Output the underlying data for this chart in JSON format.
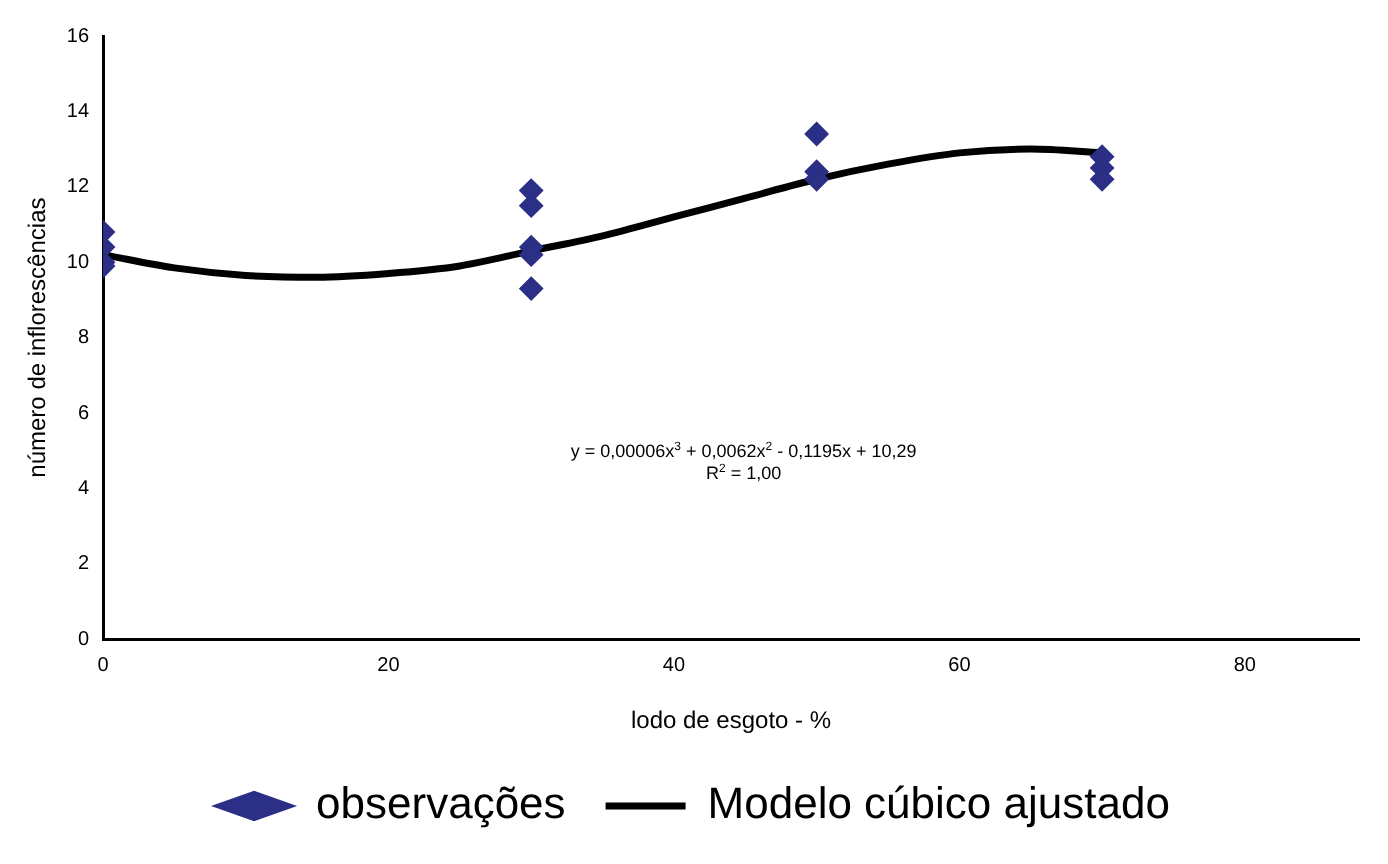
{
  "chart_data": {
    "type": "scatter",
    "xlabel": "lodo de esgoto - %",
    "ylabel": "número de inflorescências",
    "xlim": [
      0,
      88
    ],
    "xticks": [
      0,
      20,
      40,
      60,
      80
    ],
    "ylim": [
      0,
      16
    ],
    "yticks": [
      0,
      2,
      4,
      6,
      8,
      10,
      12,
      14,
      16
    ],
    "grid": false,
    "legend": "bottom",
    "marker": "diamond",
    "annotations": [
      "y = 0,00006x$^{3}$ + 0,0062x$^{2}$ - 0,1195x + 10,29",
      "R$^{2}$ = 1,00"
    ],
    "series": [
      {
        "name": "observações",
        "type": "scatter",
        "color": "#2b2f86",
        "x": [
          0,
          0,
          0,
          0,
          30,
          30,
          30,
          30,
          30,
          50,
          50,
          50,
          70,
          70,
          70
        ],
        "values": [
          10.8,
          10.4,
          10.0,
          9.9,
          11.9,
          11.5,
          10.4,
          10.2,
          9.3,
          13.4,
          12.4,
          12.2,
          12.8,
          12.5,
          12.2
        ]
      },
      {
        "name": "Modelo cúbico ajustado",
        "type": "line",
        "color": "#000000",
        "line_style": "solid",
        "marker": "none",
        "x": [
          0,
          5,
          10,
          15,
          20,
          25,
          30,
          35,
          40,
          45,
          50,
          55,
          60,
          65,
          70
        ],
        "values": [
          10.2,
          9.85,
          9.65,
          9.6,
          9.7,
          9.9,
          10.3,
          10.7,
          11.2,
          11.7,
          12.2,
          12.6,
          12.9,
          13.0,
          12.9
        ]
      }
    ]
  }
}
